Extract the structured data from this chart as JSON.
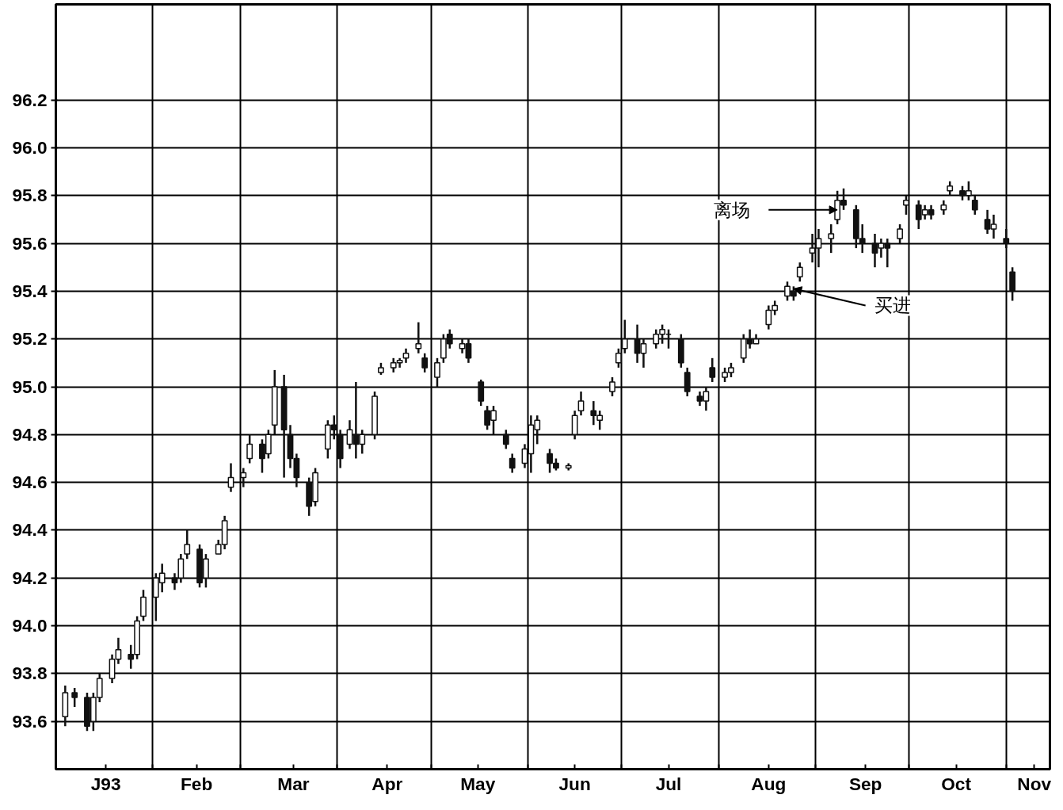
{
  "chart_data": {
    "type": "candlestick",
    "x": [
      "1993-01-04",
      "1993-01-07",
      "1993-01-11",
      "1993-01-13",
      "1993-01-15",
      "1993-01-19",
      "1993-01-21",
      "1993-01-25",
      "1993-01-27",
      "1993-01-29",
      "1993-02-02",
      "1993-02-04",
      "1993-02-08",
      "1993-02-10",
      "1993-02-12",
      "1993-02-16",
      "1993-02-18",
      "1993-02-22",
      "1993-02-24",
      "1993-02-26",
      "1993-03-02",
      "1993-03-04",
      "1993-03-08",
      "1993-03-10",
      "1993-03-12",
      "1993-03-15",
      "1993-03-17",
      "1993-03-19",
      "1993-03-23",
      "1993-03-25",
      "1993-03-29",
      "1993-03-31",
      "1993-04-02",
      "1993-04-05",
      "1993-04-07",
      "1993-04-09",
      "1993-04-13",
      "1993-04-15",
      "1993-04-19",
      "1993-04-21",
      "1993-04-23",
      "1993-04-27",
      "1993-04-29",
      "1993-05-03",
      "1993-05-05",
      "1993-05-07",
      "1993-05-11",
      "1993-05-13",
      "1993-05-17",
      "1993-05-19",
      "1993-05-21",
      "1993-05-25",
      "1993-05-27",
      "1993-05-31",
      "1993-06-02",
      "1993-06-04",
      "1993-06-08",
      "1993-06-10",
      "1993-06-14",
      "1993-06-16",
      "1993-06-18",
      "1993-06-22",
      "1993-06-24",
      "1993-06-28",
      "1993-06-30",
      "1993-07-02",
      "1993-07-06",
      "1993-07-08",
      "1993-07-12",
      "1993-07-14",
      "1993-07-16",
      "1993-07-20",
      "1993-07-22",
      "1993-07-26",
      "1993-07-28",
      "1993-07-30",
      "1993-08-03",
      "1993-08-05",
      "1993-08-09",
      "1993-08-11",
      "1993-08-13",
      "1993-08-17",
      "1993-08-19",
      "1993-08-23",
      "1993-08-25",
      "1993-08-27",
      "1993-08-31",
      "1993-09-02",
      "1993-09-06",
      "1993-09-08",
      "1993-09-10",
      "1993-09-14",
      "1993-09-16",
      "1993-09-20",
      "1993-09-22",
      "1993-09-24",
      "1993-09-28",
      "1993-09-30",
      "1993-10-04",
      "1993-10-06",
      "1993-10-08",
      "1993-10-12",
      "1993-10-14",
      "1993-10-18",
      "1993-10-20",
      "1993-10-22",
      "1993-10-26",
      "1993-10-28",
      "1993-11-01",
      "1993-11-03"
    ],
    "ohlc": [
      [
        93.62,
        93.75,
        93.58,
        93.72
      ],
      [
        93.72,
        93.74,
        93.66,
        93.7
      ],
      [
        93.7,
        93.72,
        93.56,
        93.58
      ],
      [
        93.6,
        93.72,
        93.56,
        93.7
      ],
      [
        93.7,
        93.8,
        93.68,
        93.78
      ],
      [
        93.78,
        93.88,
        93.76,
        93.86
      ],
      [
        93.86,
        93.95,
        93.84,
        93.9
      ],
      [
        93.88,
        93.92,
        93.82,
        93.86
      ],
      [
        93.88,
        94.04,
        93.86,
        94.02
      ],
      [
        94.04,
        94.15,
        94.02,
        94.12
      ],
      [
        94.12,
        94.22,
        94.02,
        94.2
      ],
      [
        94.18,
        94.26,
        94.14,
        94.22
      ],
      [
        94.2,
        94.22,
        94.15,
        94.18
      ],
      [
        94.2,
        94.3,
        94.18,
        94.28
      ],
      [
        94.3,
        94.4,
        94.28,
        94.34
      ],
      [
        94.32,
        94.34,
        94.16,
        94.18
      ],
      [
        94.2,
        94.3,
        94.16,
        94.28
      ],
      [
        94.3,
        94.36,
        94.3,
        94.34
      ],
      [
        94.34,
        94.46,
        94.32,
        94.44
      ],
      [
        94.58,
        94.68,
        94.56,
        94.62
      ],
      [
        94.62,
        94.66,
        94.58,
        94.64
      ],
      [
        94.7,
        94.8,
        94.68,
        94.76
      ],
      [
        94.76,
        94.78,
        94.64,
        94.7
      ],
      [
        94.72,
        94.82,
        94.7,
        94.8
      ],
      [
        94.84,
        95.07,
        94.8,
        95.0
      ],
      [
        95.0,
        95.05,
        94.62,
        94.82
      ],
      [
        94.8,
        94.84,
        94.66,
        94.7
      ],
      [
        94.7,
        94.72,
        94.58,
        94.62
      ],
      [
        94.6,
        94.62,
        94.46,
        94.5
      ],
      [
        94.52,
        94.66,
        94.5,
        94.64
      ],
      [
        94.74,
        94.86,
        94.7,
        94.84
      ],
      [
        94.84,
        94.88,
        94.78,
        94.82
      ],
      [
        94.8,
        94.82,
        94.66,
        94.7
      ],
      [
        94.76,
        94.86,
        94.74,
        94.82
      ],
      [
        94.8,
        95.02,
        94.7,
        94.76
      ],
      [
        94.76,
        94.82,
        94.72,
        94.8
      ],
      [
        94.8,
        94.98,
        94.78,
        94.96
      ],
      [
        95.06,
        95.1,
        95.05,
        95.08
      ],
      [
        95.08,
        95.12,
        95.06,
        95.1
      ],
      [
        95.1,
        95.12,
        95.08,
        95.11
      ],
      [
        95.12,
        95.16,
        95.1,
        95.14
      ],
      [
        95.16,
        95.27,
        95.14,
        95.18
      ],
      [
        95.12,
        95.14,
        95.06,
        95.08
      ],
      [
        95.04,
        95.12,
        95.0,
        95.1
      ],
      [
        95.12,
        95.22,
        95.1,
        95.2
      ],
      [
        95.22,
        95.24,
        95.16,
        95.18
      ],
      [
        95.16,
        95.2,
        95.14,
        95.18
      ],
      [
        95.18,
        95.2,
        95.1,
        95.12
      ],
      [
        95.02,
        95.03,
        94.92,
        94.94
      ],
      [
        94.9,
        94.92,
        94.82,
        94.84
      ],
      [
        94.86,
        94.92,
        94.8,
        94.9
      ],
      [
        94.8,
        94.82,
        94.74,
        94.76
      ],
      [
        94.7,
        94.72,
        94.64,
        94.66
      ],
      [
        94.68,
        94.76,
        94.66,
        94.74
      ],
      [
        94.72,
        94.88,
        94.64,
        94.84
      ],
      [
        94.82,
        94.88,
        94.76,
        94.86
      ],
      [
        94.72,
        94.74,
        94.64,
        94.68
      ],
      [
        94.68,
        94.7,
        94.65,
        94.66
      ],
      [
        94.66,
        94.68,
        94.65,
        94.67
      ],
      [
        94.8,
        94.9,
        94.78,
        94.88
      ],
      [
        94.9,
        94.98,
        94.88,
        94.94
      ],
      [
        94.9,
        94.94,
        94.84,
        94.88
      ],
      [
        94.86,
        94.9,
        94.82,
        94.88
      ],
      [
        94.98,
        95.04,
        94.96,
        95.02
      ],
      [
        95.1,
        95.16,
        95.08,
        95.14
      ],
      [
        95.16,
        95.28,
        95.14,
        95.2
      ],
      [
        95.2,
        95.26,
        95.1,
        95.14
      ],
      [
        95.14,
        95.2,
        95.08,
        95.18
      ],
      [
        95.18,
        95.24,
        95.16,
        95.22
      ],
      [
        95.22,
        95.26,
        95.18,
        95.24
      ],
      [
        95.22,
        95.24,
        95.16,
        95.22
      ],
      [
        95.2,
        95.22,
        95.08,
        95.1
      ],
      [
        95.06,
        95.08,
        94.96,
        94.98
      ],
      [
        94.96,
        94.98,
        94.92,
        94.94
      ],
      [
        94.94,
        95.0,
        94.9,
        94.98
      ],
      [
        95.08,
        95.12,
        95.02,
        95.04
      ],
      [
        95.04,
        95.08,
        95.02,
        95.06
      ],
      [
        95.06,
        95.1,
        95.04,
        95.08
      ],
      [
        95.12,
        95.22,
        95.1,
        95.2
      ],
      [
        95.2,
        95.24,
        95.16,
        95.18
      ],
      [
        95.18,
        95.22,
        95.18,
        95.2
      ],
      [
        95.26,
        95.34,
        95.24,
        95.32
      ],
      [
        95.32,
        95.36,
        95.3,
        95.34
      ],
      [
        95.38,
        95.44,
        95.36,
        95.42
      ],
      [
        95.4,
        95.42,
        95.36,
        95.38
      ],
      [
        95.46,
        95.52,
        95.44,
        95.5
      ],
      [
        95.56,
        95.64,
        95.52,
        95.58
      ],
      [
        95.58,
        95.66,
        95.5,
        95.62
      ],
      [
        95.62,
        95.68,
        95.56,
        95.64
      ],
      [
        95.7,
        95.82,
        95.68,
        95.78
      ],
      [
        95.78,
        95.83,
        95.74,
        95.76
      ],
      [
        95.74,
        95.76,
        95.58,
        95.62
      ],
      [
        95.62,
        95.68,
        95.56,
        95.6
      ],
      [
        95.6,
        95.64,
        95.5,
        95.56
      ],
      [
        95.58,
        95.62,
        95.54,
        95.6
      ],
      [
        95.6,
        95.62,
        95.5,
        95.58
      ],
      [
        95.62,
        95.68,
        95.6,
        95.66
      ],
      [
        95.76,
        95.8,
        95.72,
        95.78
      ],
      [
        95.76,
        95.78,
        95.66,
        95.7
      ],
      [
        95.72,
        95.76,
        95.7,
        95.74
      ],
      [
        95.74,
        95.76,
        95.7,
        95.72
      ],
      [
        95.74,
        95.78,
        95.72,
        95.76
      ],
      [
        95.82,
        95.86,
        95.8,
        95.84
      ],
      [
        95.82,
        95.84,
        95.78,
        95.8
      ],
      [
        95.8,
        95.86,
        95.78,
        95.82
      ],
      [
        95.78,
        95.8,
        95.72,
        95.74
      ],
      [
        95.7,
        95.74,
        95.64,
        95.66
      ],
      [
        95.66,
        95.72,
        95.62,
        95.68
      ],
      [
        95.62,
        95.66,
        95.58,
        95.6
      ],
      [
        95.48,
        95.5,
        95.36,
        95.4
      ]
    ],
    "color": "#111111",
    "xlim": [
      "1993-01-01",
      "1993-11-15"
    ],
    "xticks": [
      {
        "value": "1993-01-17",
        "label": "J93"
      },
      {
        "value": "1993-02-01",
        "label": null
      },
      {
        "value": "1993-02-15",
        "label": "Feb"
      },
      {
        "value": "1993-03-01",
        "label": null
      },
      {
        "value": "1993-03-18",
        "label": "Mar"
      },
      {
        "value": "1993-04-01",
        "label": null
      },
      {
        "value": "1993-04-17",
        "label": "Apr"
      },
      {
        "value": "1993-05-01",
        "label": null
      },
      {
        "value": "1993-05-16",
        "label": "May"
      },
      {
        "value": "1993-06-01",
        "label": null
      },
      {
        "value": "1993-06-16",
        "label": "Jun"
      },
      {
        "value": "1993-07-01",
        "label": null
      },
      {
        "value": "1993-07-16",
        "label": "Jul"
      },
      {
        "value": "1993-08-01",
        "label": null
      },
      {
        "value": "1993-08-17",
        "label": "Aug"
      },
      {
        "value": "1993-09-01",
        "label": null
      },
      {
        "value": "1993-09-17",
        "label": "Sep"
      },
      {
        "value": "1993-10-01",
        "label": null
      },
      {
        "value": "1993-10-16",
        "label": "Oct"
      },
      {
        "value": "1993-11-01",
        "label": null
      },
      {
        "value": "1993-11-10",
        "label": "Nov"
      }
    ],
    "ylim": [
      93.4,
      96.6
    ],
    "yticks": [
      93.6,
      93.8,
      {
        "value": 94,
        "label": "94.0"
      },
      94.2,
      94.4,
      94.6,
      94.8,
      {
        "value": 95,
        "label": "95.0"
      },
      95.2,
      95.4,
      95.6,
      95.8,
      {
        "value": 96,
        "label": "96.0"
      },
      96.2
    ],
    "grid": true,
    "annotations": [
      {
        "text": "离场",
        "x": "1993-09-08",
        "y": 95.74
      },
      {
        "text": "买进",
        "x": "1993-08-25",
        "y": 95.41
      }
    ]
  }
}
